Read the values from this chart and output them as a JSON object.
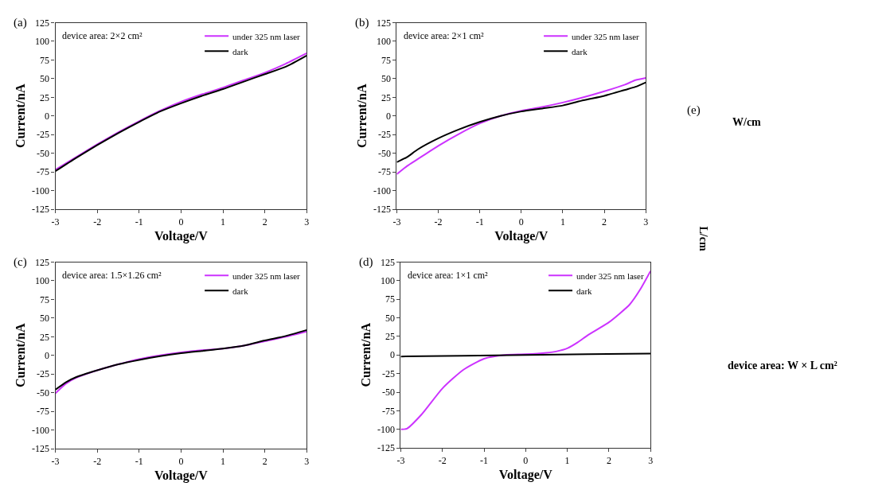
{
  "chart_data": [
    {
      "type": "line",
      "title": "(a)",
      "xlabel": "Voltage/V",
      "ylabel": "Current/nA",
      "annotations": [
        "device area: 2×2 cm²"
      ],
      "xlim": [
        -3,
        3
      ],
      "xticks": [
        -3,
        -2,
        -1,
        0,
        1,
        2,
        3
      ],
      "ylim": [
        -125,
        125
      ],
      "yticks": [
        -125,
        -100,
        -75,
        -50,
        -25,
        0,
        25,
        50,
        75,
        100,
        125
      ],
      "legend": "top right",
      "marker": "none",
      "line_style": "solid",
      "x": [
        -3,
        -2.5,
        -2,
        -1.5,
        -1,
        -0.5,
        0,
        0.5,
        1,
        1.5,
        2,
        2.5,
        3
      ],
      "series": [
        {
          "name": "under 325 nm laser",
          "color": "#cc33ff",
          "values": [
            -72,
            -55,
            -38,
            -22,
            -7,
            7,
            19,
            29,
            38,
            48,
            58,
            70,
            84
          ]
        },
        {
          "name": "dark",
          "color": "#000000",
          "values": [
            -74,
            -56,
            -39,
            -23,
            -8,
            6,
            17,
            27,
            36,
            46,
            56,
            66,
            81
          ]
        }
      ]
    },
    {
      "type": "line",
      "title": "(b)",
      "xlabel": "Voltage/V",
      "ylabel": "Current/nA",
      "annotations": [
        "device area: 2×1 cm²"
      ],
      "xlim": [
        -3,
        3
      ],
      "xticks": [
        -3,
        -2,
        -1,
        0,
        1,
        2,
        3
      ],
      "ylim": [
        -125,
        125
      ],
      "yticks": [
        -125,
        -100,
        -75,
        -50,
        -25,
        0,
        25,
        50,
        75,
        100,
        125
      ],
      "legend": "top right",
      "marker": "none",
      "line_style": "solid",
      "x": [
        -3,
        -2.75,
        -2.5,
        -2,
        -1.5,
        -1,
        -0.5,
        0,
        0.5,
        1,
        1.5,
        2,
        2.5,
        2.75,
        3
      ],
      "series": [
        {
          "name": "under 325 nm laser",
          "color": "#cc33ff",
          "values": [
            -78,
            -67,
            -58,
            -40,
            -24,
            -10,
            0,
            7,
            12,
            18,
            25,
            33,
            42,
            48,
            51
          ]
        },
        {
          "name": "dark",
          "color": "#000000",
          "values": [
            -62,
            -55,
            -45,
            -30,
            -18,
            -8,
            0,
            6,
            10,
            14,
            21,
            27,
            35,
            39,
            45
          ]
        }
      ]
    },
    {
      "type": "line",
      "title": "(c)",
      "xlabel": "Voltage/V",
      "ylabel": "Current/nA",
      "annotations": [
        "device area: 1.5×1.26 cm²"
      ],
      "xlim": [
        -3,
        3
      ],
      "xticks": [
        -3,
        -2,
        -1,
        0,
        1,
        2,
        3
      ],
      "ylim": [
        -125,
        125
      ],
      "yticks": [
        -125,
        -100,
        -75,
        -50,
        -25,
        0,
        25,
        50,
        75,
        100,
        125
      ],
      "legend": "top right",
      "marker": "none",
      "line_style": "solid",
      "x": [
        -3,
        -2.75,
        -2.5,
        -2,
        -1.5,
        -1,
        -0.5,
        0,
        0.5,
        1,
        1.5,
        2,
        2.5,
        3
      ],
      "series": [
        {
          "name": "under 325 nm laser",
          "color": "#cc33ff",
          "values": [
            -51,
            -38,
            -30,
            -20,
            -12,
            -5,
            0,
            4,
            7,
            9,
            13,
            19,
            25,
            32
          ]
        },
        {
          "name": "dark",
          "color": "#000000",
          "values": [
            -46,
            -36,
            -29,
            -20,
            -12,
            -6,
            -1,
            3,
            6,
            9,
            13,
            20,
            26,
            34
          ]
        }
      ]
    },
    {
      "type": "line",
      "title": "(d)",
      "xlabel": "Voltage/V",
      "ylabel": "Current/nA",
      "annotations": [
        "device area: 1×1 cm²"
      ],
      "xlim": [
        -3,
        3
      ],
      "xticks": [
        -3,
        -2,
        -1,
        0,
        1,
        2,
        3
      ],
      "ylim": [
        -125,
        125
      ],
      "yticks": [
        -125,
        -100,
        -75,
        -50,
        -25,
        0,
        25,
        50,
        75,
        100,
        125
      ],
      "legend": "top right",
      "marker": "none",
      "line_style": "solid",
      "series": [
        {
          "name": "under 325 nm laser",
          "color": "#cc33ff",
          "x": [
            -3,
            -2.85,
            -2.5,
            -2,
            -1.5,
            -1,
            -0.5,
            0,
            0.5,
            0.75,
            1,
            1.25,
            1.5,
            2,
            2.5,
            2.75,
            3
          ],
          "values": [
            -100,
            -99,
            -80,
            -45,
            -20,
            -5,
            0,
            1,
            3,
            5,
            9,
            17,
            27,
            44,
            68,
            88,
            113
          ]
        },
        {
          "name": "dark",
          "color": "#000000",
          "x": [
            -3,
            -1.5,
            0,
            1.5,
            3
          ],
          "values": [
            -2,
            -1,
            0,
            1,
            2
          ]
        }
      ]
    },
    {
      "type": "other",
      "title": "(e)",
      "annotations": [
        "W/cm",
        "L/cm",
        "device area: W × L cm²"
      ]
    }
  ]
}
